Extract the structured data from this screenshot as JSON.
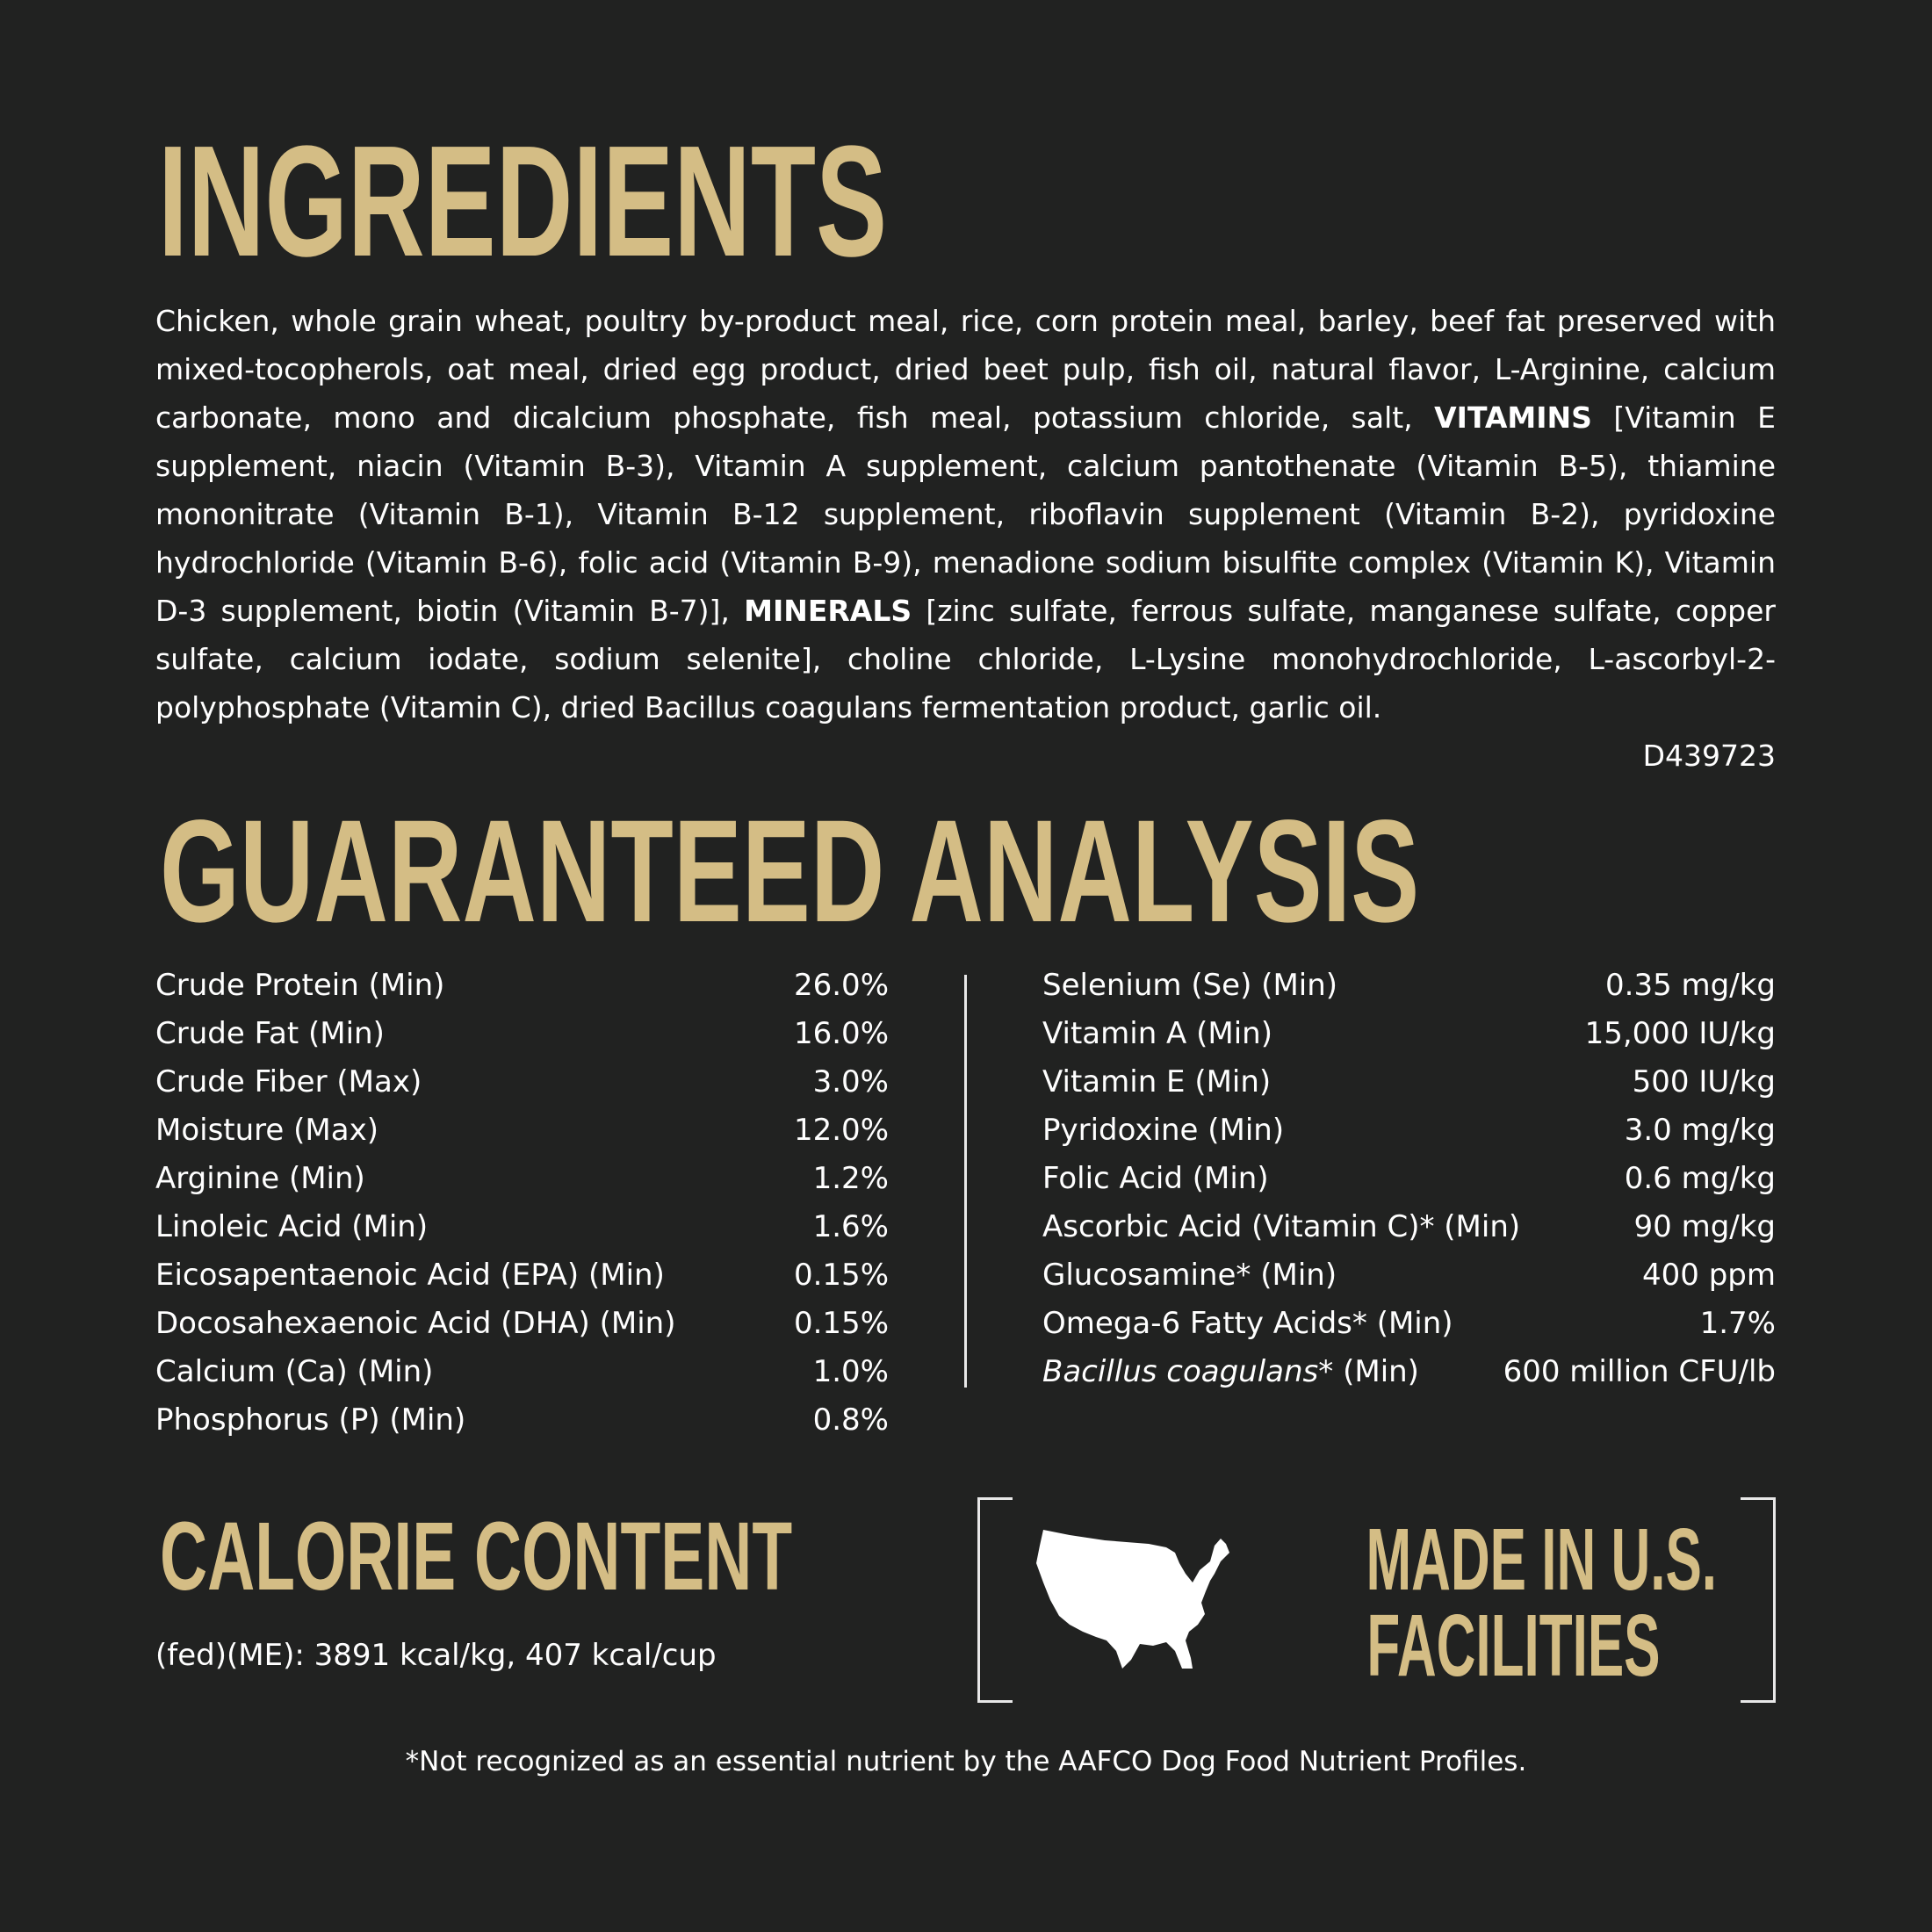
{
  "colors": {
    "background": "#212221",
    "accent": "#d4bd85",
    "text": "#ffffff"
  },
  "ingredients": {
    "heading": "INGREDIENTS",
    "text_1": "Chicken, whole grain wheat, poultry by-product meal, rice, corn protein meal, barley, beef fat preserved with mixed-tocopherols, oat meal, dried egg product, dried beet pulp, fish oil, natural flavor, L-Arginine, calcium carbonate, mono and dicalcium phosphate, fish meal, potassium chloride, salt, ",
    "bold_1": "VITAMINS",
    "text_2": " [Vitamin E supplement, niacin (Vitamin B-3), Vitamin A supplement, calcium pantothenate (Vitamin B-5), thiamine mononitrate (Vitamin B-1), Vitamin B-12 supplement, riboflavin supplement (Vitamin B-2), pyridoxine hydrochloride (Vitamin B-6), folic acid (Vitamin B-9), menadione sodium bisulfite complex (Vitamin K), Vitamin D-3 supplement, biotin (Vitamin B-7)], ",
    "bold_2": "MINERALS",
    "text_3": " [zinc sulfate, ferrous sulfate, manganese sulfate, copper sulfate, calcium iodate, sodium selenite], choline chloride, L-Lysine monohydrochloride, L-ascorbyl-2-polyphosphate (Vitamin C), dried Bacillus coagulans fermentation product, garlic oil.",
    "code": "D439723"
  },
  "analysis": {
    "heading": "GUARANTEED ANALYSIS",
    "left": [
      {
        "label": "Crude Protein (Min)",
        "value": "26.0%"
      },
      {
        "label": "Crude Fat (Min)",
        "value": "16.0%"
      },
      {
        "label": "Crude Fiber (Max)",
        "value": "3.0%"
      },
      {
        "label": "Moisture (Max)",
        "value": "12.0%"
      },
      {
        "label": "Arginine (Min)",
        "value": "1.2%"
      },
      {
        "label": "Linoleic Acid (Min)",
        "value": "1.6%"
      },
      {
        "label": "Eicosapentaenoic Acid (EPA) (Min)",
        "value": "0.15%"
      },
      {
        "label": "Docosahexaenoic Acid (DHA) (Min)",
        "value": "0.15%"
      },
      {
        "label": "Calcium (Ca) (Min)",
        "value": "1.0%"
      },
      {
        "label": "Phosphorus (P) (Min)",
        "value": "0.8%"
      }
    ],
    "right": [
      {
        "label": "Selenium (Se) (Min)",
        "value": "0.35 mg/kg"
      },
      {
        "label": "Vitamin A (Min)",
        "value": "15,000 IU/kg"
      },
      {
        "label": "Vitamin E (Min)",
        "value": "500 IU/kg"
      },
      {
        "label": "Pyridoxine (Min)",
        "value": "3.0 mg/kg"
      },
      {
        "label": "Folic Acid (Min)",
        "value": "0.6 mg/kg"
      },
      {
        "label": "Ascorbic Acid (Vitamin C)* (Min)",
        "value": "90 mg/kg"
      },
      {
        "label": "Glucosamine* (Min)",
        "value": "400 ppm"
      },
      {
        "label": "Omega-6 Fatty Acids* (Min)",
        "value": "1.7%"
      }
    ],
    "last": {
      "italic": "Bacillus coagulans",
      "label": "* (Min)",
      "value": "600 million CFU/lb"
    }
  },
  "calorie": {
    "heading": "CALORIE CONTENT",
    "text": "(fed)(ME): 3891 kcal/kg, 407 kcal/cup"
  },
  "made": {
    "line1": "MADE IN U.S.",
    "line2": "FACILITIES",
    "icon": "us-map-icon"
  },
  "footnote": "*Not recognized as an essential nutrient by the AAFCO Dog Food Nutrient Profiles."
}
